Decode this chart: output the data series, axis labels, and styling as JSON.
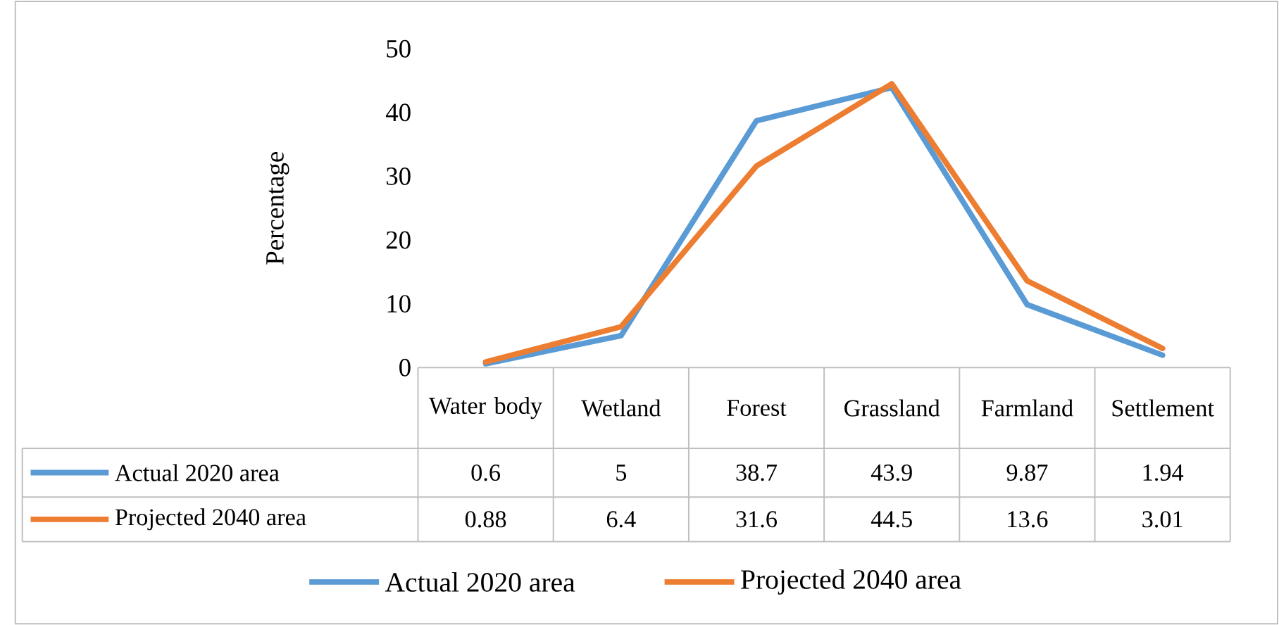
{
  "chart_data": {
    "type": "line",
    "ylabel": "Percentage",
    "categories": [
      "Water body",
      "Wetland",
      "Forest",
      "Grassland",
      "Farmland",
      "Settlement"
    ],
    "series": [
      {
        "name": "Actual 2020 area",
        "color": "#5b9bd5",
        "values": [
          0.6,
          5,
          38.7,
          43.9,
          9.87,
          1.94
        ]
      },
      {
        "name": "Projected 2040 area",
        "color": "#ed7d31",
        "values": [
          0.88,
          6.4,
          31.6,
          44.5,
          13.6,
          3.01
        ]
      }
    ],
    "ylim": [
      0,
      50
    ],
    "yticks": [
      0,
      10,
      20,
      30,
      40,
      50
    ],
    "data_labels": true,
    "legend": "bottom",
    "grid": false
  }
}
